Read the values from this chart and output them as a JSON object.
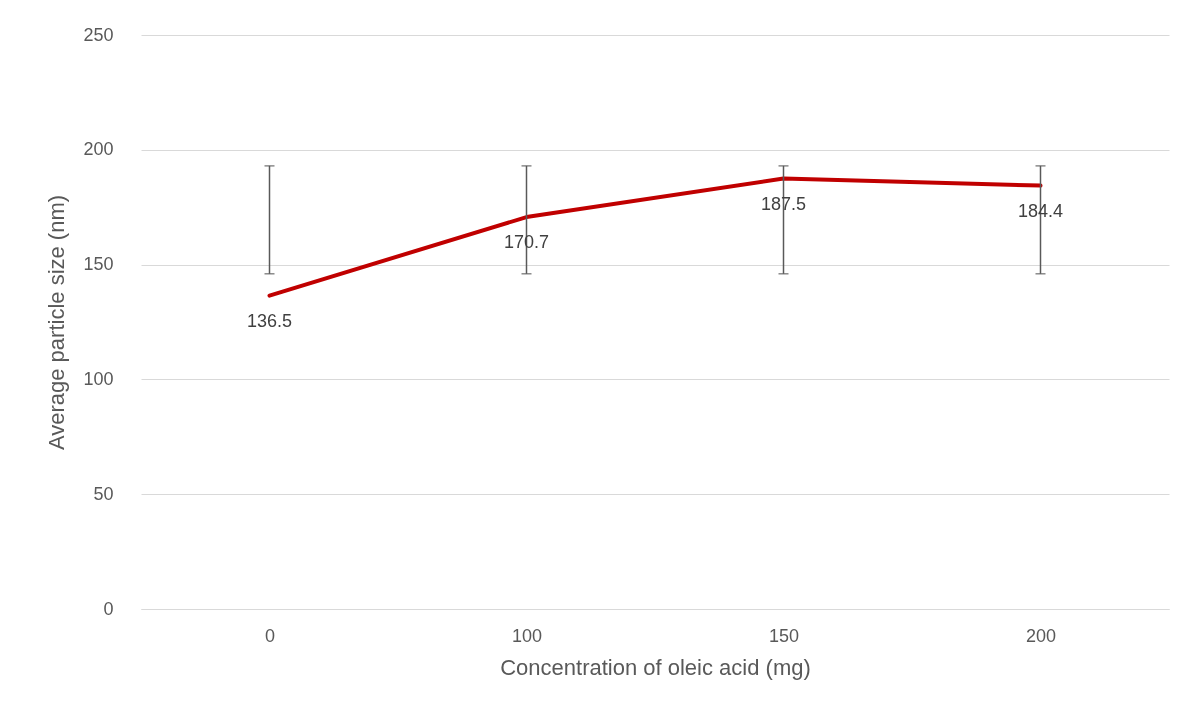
{
  "chart_data": {
    "type": "line",
    "xlabel": "Concentration of oleic acid (mg)",
    "ylabel": "Average particle size (nm)",
    "categories": [
      "0",
      "100",
      "150",
      "200"
    ],
    "series": [
      {
        "color": "#c00000",
        "values": [
          136.5,
          170.7,
          187.5,
          184.4
        ],
        "errors": [
          [
            146,
            193
          ],
          [
            146,
            193
          ],
          [
            146,
            193
          ],
          [
            146,
            193
          ]
        ]
      }
    ],
    "ylim": [
      0,
      250
    ],
    "yticks": [
      0,
      50,
      100,
      150,
      200,
      250
    ],
    "grid": "y",
    "data_labels": true,
    "line_style": "solid"
  }
}
